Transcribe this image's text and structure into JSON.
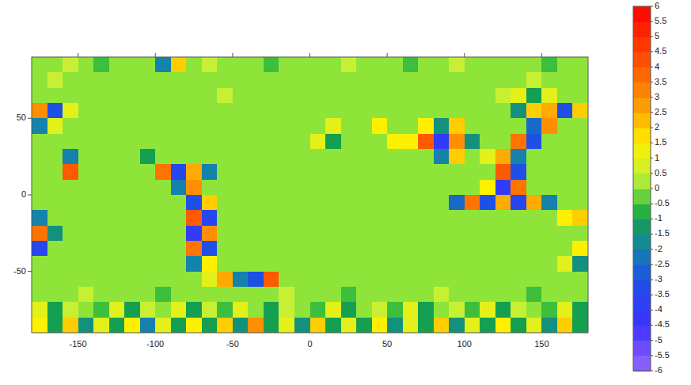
{
  "chart_data": {
    "type": "heatmap",
    "xlim": [
      -180,
      180
    ],
    "xticks": [
      -150,
      -100,
      -50,
      0,
      50,
      100,
      150
    ],
    "ylim": [
      -90,
      90
    ],
    "yticks": [
      -50,
      0,
      50
    ],
    "colorbar_range": [
      -6,
      6
    ],
    "colorbar_ticks": [
      -6,
      -5.5,
      -5,
      -4.5,
      -4,
      -3.5,
      -3,
      -2.5,
      -2,
      -1.5,
      -1,
      -0.5,
      0,
      0.5,
      1,
      1.5,
      2,
      2.5,
      3,
      3.5,
      4,
      4.5,
      5,
      5.5,
      6
    ],
    "cells": [
      [
        0,
        0,
        0.5,
        0,
        -0.5,
        0,
        0,
        0,
        -2,
        2,
        0,
        0.5,
        0,
        0,
        0,
        -0.5,
        0,
        0,
        0,
        0,
        0.5,
        0,
        0,
        0,
        -0.5,
        0,
        0,
        0.5,
        0,
        0,
        0,
        0,
        0,
        -0.5,
        0,
        0
      ],
      [
        0,
        0.5,
        0,
        0,
        0,
        0,
        0,
        0,
        0,
        0,
        0,
        0,
        0,
        0,
        0,
        0,
        0,
        0,
        0,
        0,
        0,
        0,
        0,
        0,
        0,
        0,
        0,
        0,
        0,
        0,
        0,
        0,
        0.5,
        0,
        0,
        0
      ],
      [
        0,
        0,
        0,
        0,
        0,
        0,
        0,
        0,
        0,
        0,
        0,
        0,
        0.5,
        0,
        0,
        0,
        0,
        0,
        0,
        0,
        0,
        0,
        0,
        0,
        0,
        0,
        0,
        0,
        0,
        0,
        0.5,
        1,
        -1,
        1,
        0,
        0
      ],
      [
        3,
        -3,
        1,
        0,
        0,
        0,
        0,
        0,
        0,
        0,
        0,
        0,
        0,
        0,
        0,
        0,
        0,
        0,
        0,
        0,
        0,
        0,
        0,
        0,
        0,
        0,
        0,
        0,
        0,
        0,
        0,
        -1.5,
        2,
        2.5,
        -3,
        2
      ],
      [
        -2,
        1,
        0,
        0,
        0,
        0,
        0,
        0,
        0,
        0,
        0,
        0,
        0,
        0,
        0,
        0,
        0,
        0,
        0,
        1,
        0,
        0,
        1.5,
        0,
        0,
        1.5,
        -1.5,
        2,
        0,
        0,
        0,
        0,
        -2.5,
        3,
        0,
        0
      ],
      [
        0,
        0,
        0,
        0,
        0,
        0,
        0,
        0,
        0,
        0,
        0,
        0,
        0,
        0,
        0,
        0,
        0,
        0,
        1,
        -1,
        0,
        0,
        0,
        1.5,
        1.5,
        4,
        -4,
        3,
        -1.5,
        0,
        0,
        3.5,
        -3,
        0,
        0,
        0
      ],
      [
        0,
        0,
        -2,
        0,
        0,
        0,
        0,
        -1,
        0,
        0,
        0,
        0,
        0,
        0,
        0,
        0,
        0,
        0,
        0,
        0,
        0,
        0,
        0,
        0,
        0,
        0,
        -2,
        2,
        0,
        1,
        2.5,
        -2,
        0,
        0,
        0,
        0
      ],
      [
        0,
        0,
        4,
        0,
        0,
        0,
        0,
        0,
        3.5,
        -3.5,
        2.5,
        -2,
        0,
        0,
        0,
        0,
        0,
        0,
        0,
        0,
        0,
        0,
        0,
        0,
        0,
        0,
        0,
        0,
        0,
        0,
        4,
        -3,
        0,
        0,
        0,
        0
      ],
      [
        0,
        0,
        0,
        0,
        0,
        0,
        0,
        0,
        0,
        -2,
        3,
        0,
        0,
        0,
        0,
        0,
        0,
        0,
        0,
        0,
        0,
        0,
        0,
        0,
        0,
        0,
        0,
        0,
        0,
        1.5,
        -4,
        3.5,
        0,
        0,
        0,
        0
      ],
      [
        0,
        0,
        0,
        0,
        0,
        0,
        0,
        0,
        0,
        0,
        -3,
        2,
        0,
        0,
        0,
        0,
        0,
        0,
        0,
        0,
        0,
        0,
        0,
        0,
        0,
        0,
        0,
        -2.5,
        3.5,
        -3,
        2.5,
        -3.5,
        2.5,
        -2,
        0,
        0
      ],
      [
        -2,
        0,
        0,
        0,
        0,
        0,
        0,
        0,
        0,
        0,
        4,
        -3.5,
        0,
        0,
        0,
        0,
        0,
        0,
        0,
        0,
        0,
        0,
        0,
        0,
        0,
        0,
        0,
        0,
        0,
        0,
        0,
        0,
        0,
        0,
        1.5,
        2
      ],
      [
        3.5,
        -1.5,
        0,
        0,
        0,
        0,
        0,
        0,
        0,
        0,
        -4,
        3,
        0,
        0,
        0,
        0,
        0,
        0,
        0,
        0,
        0,
        0,
        0,
        0,
        0,
        0,
        0,
        0,
        0,
        0,
        0,
        0,
        0,
        0,
        0,
        0
      ],
      [
        -3.5,
        0,
        0,
        0,
        0,
        0,
        0,
        0,
        0,
        0,
        3.5,
        -3,
        0,
        0,
        0,
        0,
        0,
        0,
        0,
        0,
        0,
        0,
        0,
        0,
        0,
        0,
        0,
        0,
        0,
        0,
        0,
        0,
        0,
        0,
        0,
        1.5
      ],
      [
        0,
        0,
        0,
        0,
        0,
        0,
        0,
        0,
        0,
        0,
        -2,
        1.5,
        0,
        0,
        0,
        0,
        0,
        0,
        0,
        0,
        0,
        0,
        0,
        0,
        0,
        0,
        0,
        0,
        0,
        0,
        0,
        0,
        0,
        0,
        1,
        -1.5
      ],
      [
        0,
        0,
        0,
        0,
        0,
        0,
        0,
        0,
        0,
        0,
        0,
        1,
        2.5,
        -2,
        -3,
        4,
        0,
        0,
        0,
        0,
        0,
        0,
        0,
        0,
        0,
        0,
        0,
        0,
        0,
        0,
        0,
        0,
        0,
        0,
        0,
        0
      ],
      [
        0,
        0,
        0,
        0.5,
        0,
        0,
        0,
        0,
        -0.5,
        0,
        0,
        0,
        0,
        0,
        0,
        0,
        0.5,
        0,
        0,
        0,
        -0.5,
        0,
        0,
        0,
        0,
        0,
        0.5,
        0,
        0,
        0,
        0,
        0,
        -0.5,
        0,
        0,
        0
      ],
      [
        1,
        -1,
        0.5,
        0,
        -0.5,
        1,
        -1,
        0.5,
        0,
        1,
        -1,
        0.5,
        -0.5,
        1,
        0,
        -1,
        0.5,
        0,
        -0.5,
        1,
        -1,
        0,
        0.5,
        -0.5,
        1,
        -1,
        0,
        0.5,
        -0.5,
        1,
        -1,
        0.5,
        0,
        -0.5,
        1,
        -1
      ],
      [
        1.5,
        -1,
        2,
        -1.5,
        1,
        -1,
        1.5,
        -2,
        1,
        -1,
        1.5,
        -1,
        2,
        -1.5,
        3,
        -1,
        1,
        -1.5,
        2,
        -1,
        1,
        -1,
        1.5,
        -1.5,
        1,
        -1,
        2,
        -1.5,
        1,
        -1,
        1.5,
        -1,
        1,
        -1.5,
        2,
        -1
      ]
    ]
  }
}
